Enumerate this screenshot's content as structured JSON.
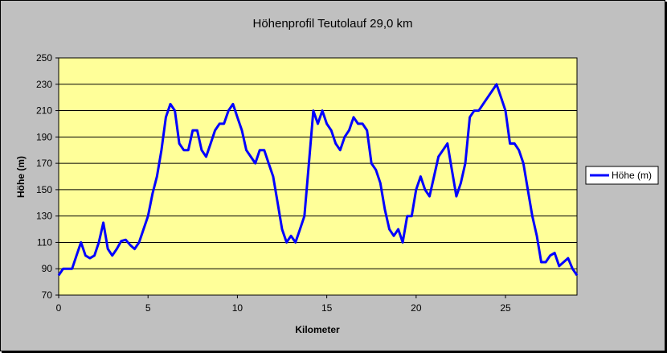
{
  "chart_data": {
    "type": "line",
    "title": "Höhenprofil Teutolauf 29,0 km",
    "xlabel": "Kilometer",
    "ylabel": "Höhe (m)",
    "xlim": [
      0,
      29
    ],
    "ylim": [
      70,
      250
    ],
    "xticks": [
      0,
      5,
      10,
      15,
      20,
      25
    ],
    "yticks": [
      70,
      90,
      110,
      130,
      150,
      170,
      190,
      210,
      230,
      250
    ],
    "grid": "horizontal",
    "legend_position": "right",
    "colors": {
      "line": "#0000ff",
      "plot_bg": "#ffff99",
      "chart_bg": "#c0c0c0"
    },
    "series": [
      {
        "name": "Höhe (m)",
        "x": [
          0,
          0.25,
          0.5,
          0.75,
          1,
          1.25,
          1.5,
          1.75,
          2,
          2.25,
          2.5,
          2.75,
          3,
          3.25,
          3.5,
          3.75,
          4,
          4.25,
          4.5,
          4.75,
          5,
          5.25,
          5.5,
          5.75,
          6,
          6.25,
          6.5,
          6.75,
          7,
          7.25,
          7.5,
          7.75,
          8,
          8.25,
          8.5,
          8.75,
          9,
          9.25,
          9.5,
          9.75,
          10,
          10.25,
          10.5,
          10.75,
          11,
          11.25,
          11.5,
          11.75,
          12,
          12.25,
          12.5,
          12.75,
          13,
          13.25,
          13.5,
          13.75,
          14,
          14.25,
          14.5,
          14.75,
          15,
          15.25,
          15.5,
          15.75,
          16,
          16.25,
          16.5,
          16.75,
          17,
          17.25,
          17.5,
          17.75,
          18,
          18.25,
          18.5,
          18.75,
          19,
          19.25,
          19.5,
          19.75,
          20,
          20.25,
          20.5,
          20.75,
          21,
          21.25,
          21.5,
          21.75,
          22,
          22.25,
          22.5,
          22.75,
          23,
          23.25,
          23.5,
          23.75,
          24,
          24.25,
          24.5,
          24.75,
          25,
          25.25,
          25.5,
          25.75,
          26,
          26.25,
          26.5,
          26.75,
          27,
          27.25,
          27.5,
          27.75,
          28,
          28.25,
          28.5,
          28.75,
          29
        ],
        "values": [
          85,
          90,
          90,
          90,
          100,
          110,
          100,
          98,
          100,
          110,
          125,
          105,
          100,
          105,
          111,
          112,
          108,
          105,
          110,
          120,
          130,
          147,
          160,
          180,
          205,
          215,
          210,
          185,
          180,
          180,
          195,
          195,
          180,
          175,
          185,
          195,
          200,
          200,
          210,
          215,
          205,
          195,
          180,
          175,
          170,
          180,
          180,
          170,
          160,
          140,
          120,
          110,
          115,
          110,
          120,
          130,
          170,
          210,
          200,
          210,
          200,
          195,
          185,
          180,
          190,
          195,
          205,
          200,
          200,
          195,
          170,
          165,
          155,
          135,
          120,
          115,
          120,
          110,
          130,
          130,
          150,
          160,
          150,
          145,
          160,
          175,
          180,
          185,
          165,
          145,
          155,
          170,
          205,
          210,
          210,
          215,
          220,
          225,
          230,
          220,
          210,
          185,
          185,
          180,
          170,
          150,
          130,
          115,
          95,
          95,
          100,
          102,
          92,
          95,
          98,
          90,
          85
        ]
      }
    ]
  }
}
